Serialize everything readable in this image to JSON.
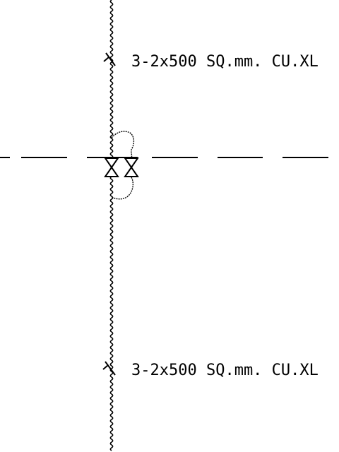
{
  "drawing": {
    "cable_labels": [
      "3-2x500 SQ.mm. CU.XL",
      "3-2x500 SQ.mm. CU.XL"
    ],
    "line_color": "#000000",
    "background": "#ffffff",
    "symbols": [
      "wavy-cable-line",
      "cable-tick-mark",
      "dashed-boundary-line",
      "bowtie-switch-symbol",
      "cable-loop"
    ]
  }
}
